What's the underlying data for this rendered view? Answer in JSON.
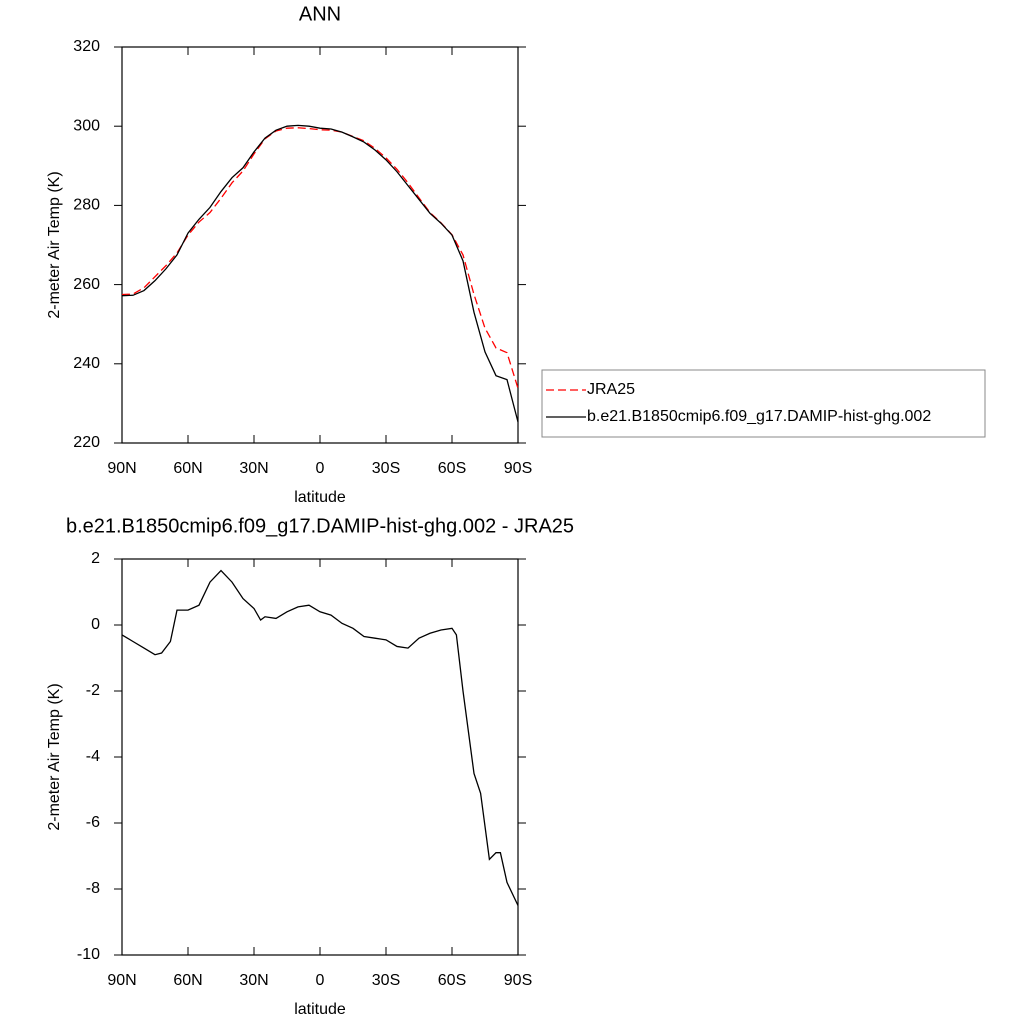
{
  "chart_data": [
    {
      "type": "line",
      "title": "ANN",
      "xlabel": "latitude",
      "ylabel": "2-meter Air Temp (K)",
      "x": [
        90,
        85,
        80,
        75,
        70,
        65,
        60,
        55,
        50,
        45,
        40,
        35,
        30,
        25,
        20,
        15,
        10,
        5,
        0,
        -5,
        -10,
        -15,
        -20,
        -25,
        -30,
        -35,
        -40,
        -45,
        -50,
        -55,
        -60,
        -65,
        -70,
        -75,
        -80,
        -85,
        -90
      ],
      "series": [
        {
          "name": "JRA25",
          "color": "#ff0000",
          "dashed": true,
          "values": [
            257.5,
            257.6,
            259.2,
            262,
            264.8,
            268,
            272.5,
            275.8,
            278.2,
            281.8,
            285.7,
            288.7,
            293,
            296.8,
            298.8,
            299.5,
            299.6,
            299.4,
            299.1,
            299,
            298.5,
            297.4,
            296.3,
            294.4,
            292,
            289.1,
            285.7,
            281.9,
            278.2,
            275.6,
            272.6,
            267.5,
            257.5,
            249,
            244,
            242.8,
            233.8
          ]
        },
        {
          "name": "b.e21.B1850cmip6.f09_g17.DAMIP-hist-ghg.002",
          "color": "#000000",
          "dashed": false,
          "values": [
            257.2,
            257.3,
            258.5,
            261,
            264,
            267.5,
            273,
            276.5,
            279.5,
            283.5,
            287,
            289.5,
            293.5,
            297,
            299,
            300,
            300.2,
            300,
            299.5,
            299.3,
            298.5,
            297.3,
            296,
            294,
            291.5,
            288.5,
            285,
            281.5,
            278,
            275.5,
            272.5,
            266,
            253,
            243,
            237,
            236,
            225.3
          ]
        }
      ],
      "xlim": [
        90,
        -90
      ],
      "xticks": [
        {
          "value": 90,
          "label": "90N"
        },
        {
          "value": 60,
          "label": "60N"
        },
        {
          "value": 30,
          "label": "30N"
        },
        0,
        {
          "value": -30,
          "label": "30S"
        },
        {
          "value": -60,
          "label": "60S"
        },
        {
          "value": -90,
          "label": "90S"
        }
      ],
      "ylim": [
        220,
        320
      ],
      "yticks": [
        220,
        240,
        260,
        280,
        300,
        320
      ],
      "legend": "right"
    },
    {
      "type": "line",
      "title": "b.e21.B1850cmip6.f09_g17.DAMIP-hist-ghg.002 - JRA25",
      "xlabel": "latitude",
      "ylabel": "2-meter Air Temp (K)",
      "x": [
        90,
        85,
        80,
        75,
        72,
        68,
        65,
        60,
        55,
        50,
        45,
        40,
        35,
        30,
        27,
        25,
        20,
        15,
        10,
        5,
        0,
        -5,
        -10,
        -15,
        -20,
        -25,
        -30,
        -35,
        -40,
        -45,
        -50,
        -55,
        -60,
        -62,
        -65,
        -70,
        -73,
        -77,
        -80,
        -82,
        -85,
        -90
      ],
      "values": [
        -0.3,
        -0.5,
        -0.7,
        -0.9,
        -0.85,
        -0.5,
        0.45,
        0.45,
        0.6,
        1.3,
        1.65,
        1.3,
        0.8,
        0.5,
        0.15,
        0.25,
        0.2,
        0.4,
        0.55,
        0.6,
        0.4,
        0.3,
        0.05,
        -0.1,
        -0.35,
        -0.4,
        -0.45,
        -0.65,
        -0.7,
        -0.4,
        -0.25,
        -0.15,
        -0.1,
        -0.3,
        -2,
        -4.5,
        -5.1,
        -7.1,
        -6.9,
        -6.9,
        -7.8,
        -8.5
      ],
      "color": "#000000",
      "xlim": [
        90,
        -90
      ],
      "xticks": [
        {
          "value": 90,
          "label": "90N"
        },
        {
          "value": 60,
          "label": "60N"
        },
        {
          "value": 30,
          "label": "30N"
        },
        0,
        {
          "value": -30,
          "label": "30S"
        },
        {
          "value": -60,
          "label": "60S"
        },
        {
          "value": -90,
          "label": "90S"
        }
      ],
      "ylim": [
        -10,
        2
      ],
      "yticks": [
        -10,
        -8,
        -6,
        -4,
        -2,
        0,
        2
      ]
    }
  ]
}
